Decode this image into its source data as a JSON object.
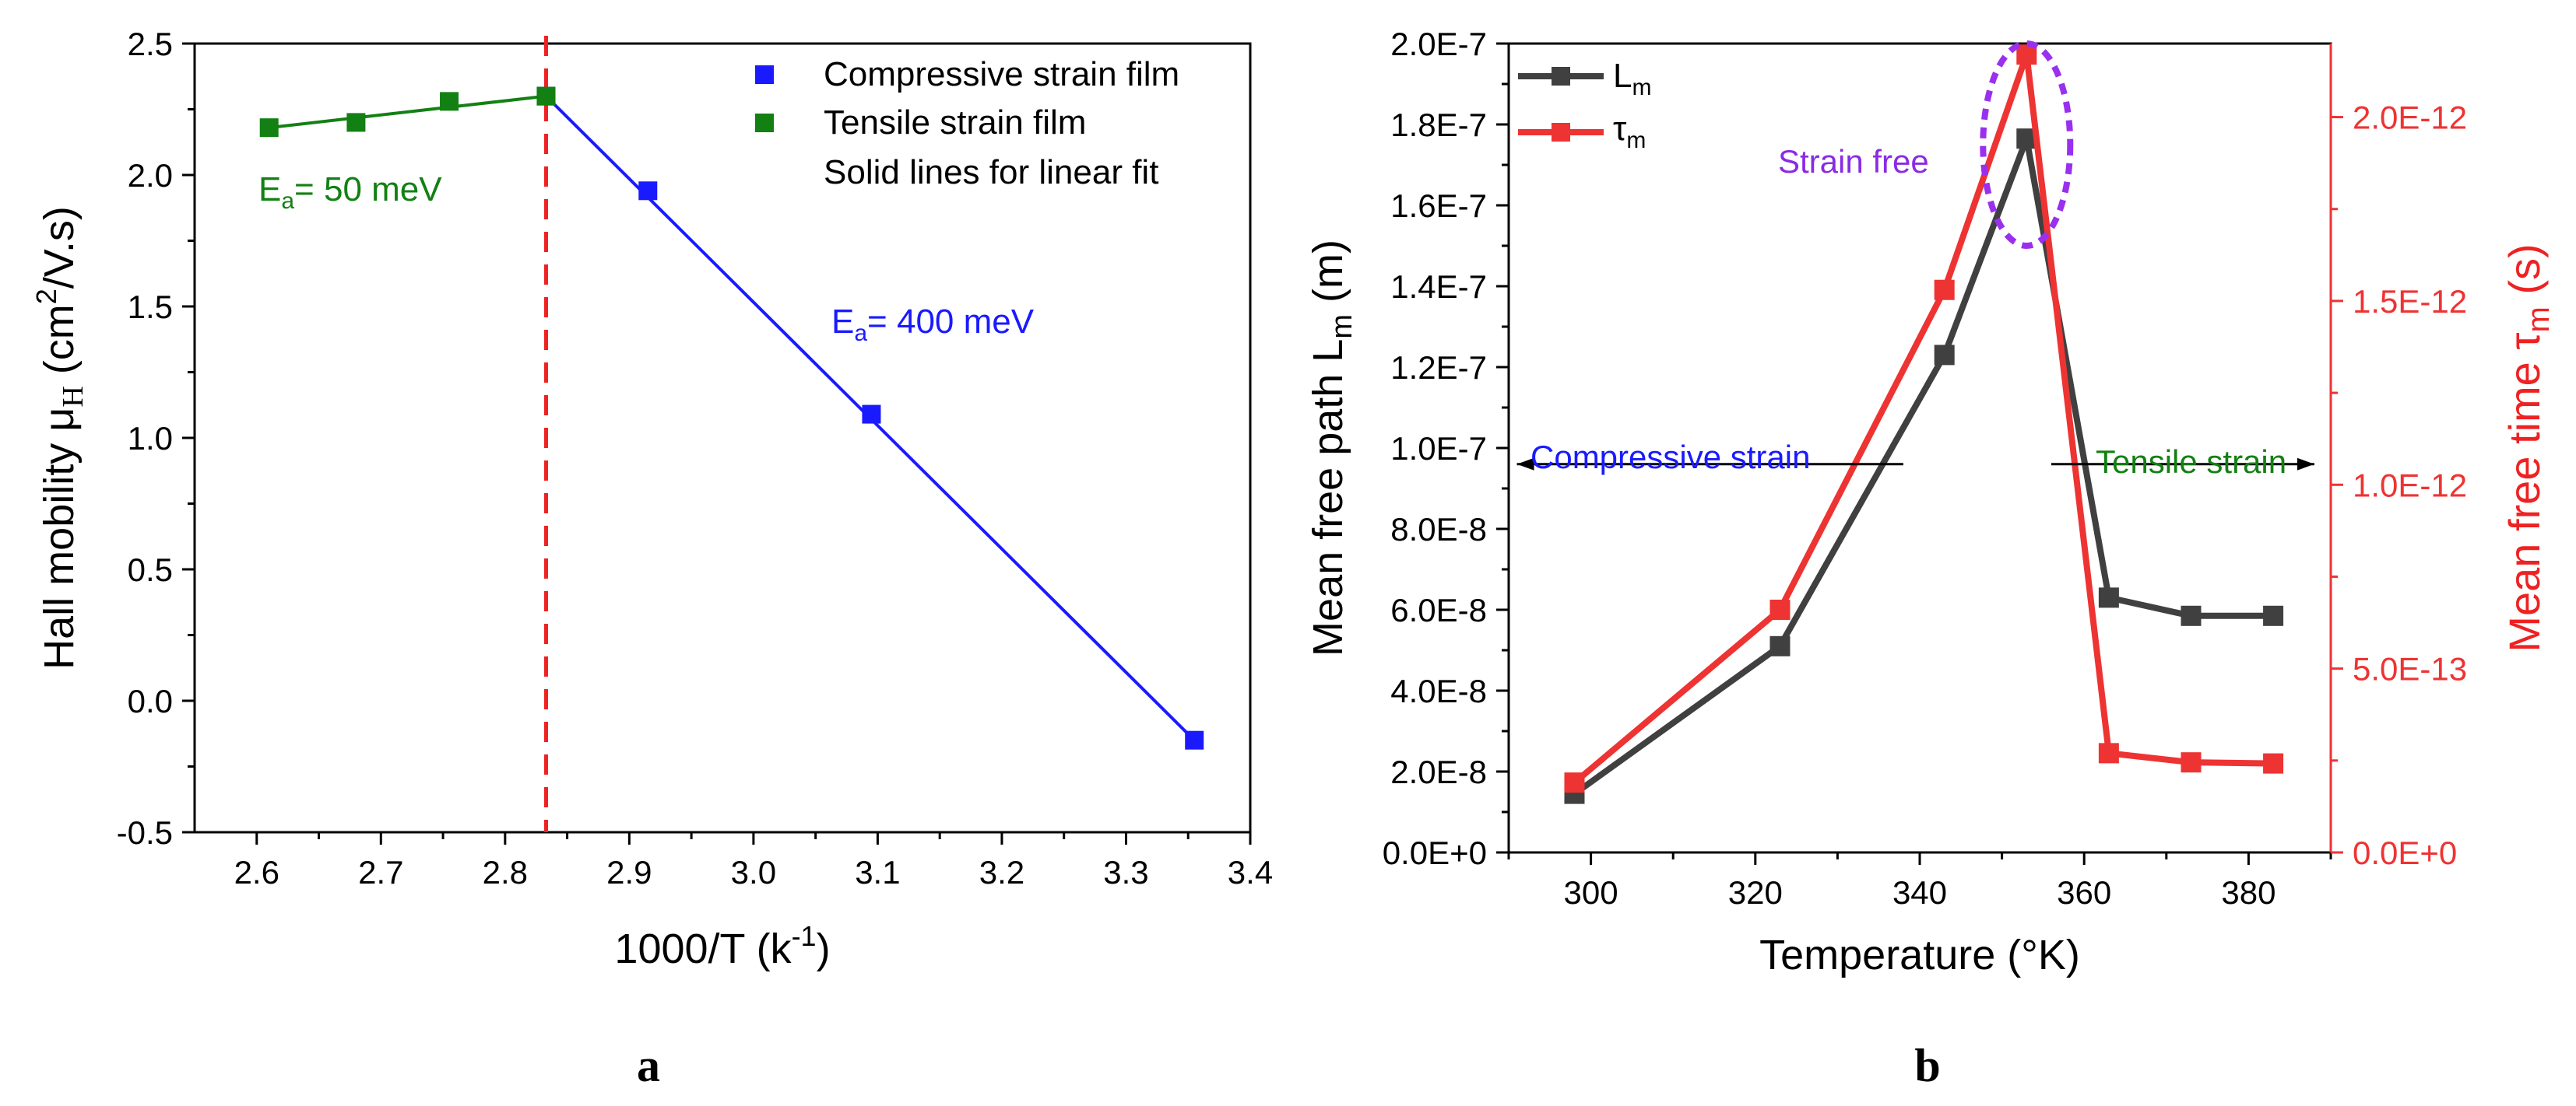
{
  "chart_data": [
    {
      "panel": "a",
      "type": "scatter",
      "xlabel": "1000/T (k",
      "xlabel_sup": "-1",
      "xlabel_end": ")",
      "ylabel_pre": "Hall mobility μ",
      "ylabel_sub": "H",
      "ylabel_mid": " (cm",
      "ylabel_sup": "2",
      "ylabel_end": "/V.s)",
      "xlim": [
        2.55,
        3.4
      ],
      "ylim": [
        -0.5,
        2.5
      ],
      "x_ticks": [
        2.6,
        2.7,
        2.8,
        2.9,
        3.0,
        3.1,
        3.2,
        3.3,
        3.4
      ],
      "x_tick_labels": [
        "2.6",
        "2.7",
        "2.8",
        "2.9",
        "3.0",
        "3.1",
        "3.2",
        "3.3",
        "3.4"
      ],
      "y_ticks": [
        -0.5,
        0.0,
        0.5,
        1.0,
        1.5,
        2.0,
        2.5
      ],
      "y_tick_labels": [
        "-0.5",
        "0.0",
        "0.5",
        "1.0",
        "1.5",
        "2.0",
        "2.5"
      ],
      "series": [
        {
          "name": "Compressive strain film",
          "color": "#1a1aff",
          "x": [
            2.833,
            2.915,
            3.095,
            3.355
          ],
          "y": [
            2.3,
            1.94,
            1.09,
            -0.15
          ],
          "fit": {
            "x": [
              2.833,
              3.355
            ],
            "y": [
              2.3,
              -0.15
            ]
          }
        },
        {
          "name": "Tensile strain film",
          "color": "#138013",
          "x": [
            2.61,
            2.68,
            2.755,
            2.833
          ],
          "y": [
            2.18,
            2.2,
            2.28,
            2.3
          ],
          "fit": {
            "x": [
              2.61,
              2.833
            ],
            "y": [
              2.18,
              2.3
            ]
          }
        }
      ],
      "vline": {
        "x": 2.833,
        "color": "#ee2222"
      },
      "legend": {
        "position": "top-right",
        "entries": [
          "Compressive strain film",
          "Tensile strain film"
        ],
        "note": "Solid lines for linear fit"
      },
      "annotations": [
        {
          "pre": "E",
          "sub": "a",
          "post": "= 50 meV",
          "color": "#138013"
        },
        {
          "pre": "E",
          "sub": "a",
          "post": "= 400 meV",
          "color": "#1a1aff"
        }
      ]
    },
    {
      "panel": "b",
      "type": "line",
      "xlabel": "Temperature (°K)",
      "ylabel_left_pre": "Mean free path L",
      "ylabel_left_sub": "m",
      "ylabel_left_post": " (m)",
      "ylabel_right_pre": "Mean free time τ",
      "ylabel_right_sub": "m",
      "ylabel_right_post": " (s)",
      "xlim": [
        290,
        390
      ],
      "ylim_left": [
        0,
        2e-07
      ],
      "ylim_right": [
        0,
        2.2e-12
      ],
      "x_ticks": [
        300,
        320,
        340,
        360,
        380
      ],
      "x_tick_labels": [
        "300",
        "320",
        "340",
        "360",
        "380"
      ],
      "y_left_ticks": [
        0,
        2e-08,
        4e-08,
        6e-08,
        8e-08,
        1e-07,
        1.2e-07,
        1.4e-07,
        1.6e-07,
        1.8e-07,
        2e-07
      ],
      "y_left_tick_labels": [
        "0.0E+0",
        "2.0E-8",
        "4.0E-8",
        "6.0E-8",
        "8.0E-8",
        "1.0E-7",
        "1.2E-7",
        "1.4E-7",
        "1.6E-7",
        "1.8E-7",
        "2.0E-7"
      ],
      "y_right_ticks": [
        0,
        5e-13,
        1e-12,
        1.5e-12,
        2e-12
      ],
      "y_right_tick_labels": [
        "0.0E+0",
        "5.0E-13",
        "1.0E-12",
        "1.5E-12",
        "2.0E-12"
      ],
      "series": [
        {
          "name": "L",
          "sub": "m",
          "axis": "left",
          "color": "#404040",
          "x": [
            298,
            323,
            343,
            353,
            363,
            373,
            383
          ],
          "y": [
            1.45e-08,
            5.1e-08,
            1.23e-07,
            1.765e-07,
            6.3e-08,
            5.85e-08,
            5.85e-08
          ]
        },
        {
          "name": "τ",
          "sub": "m",
          "axis": "right",
          "color": "#ee3333",
          "x": [
            298,
            323,
            343,
            353,
            363,
            373,
            383
          ],
          "y": [
            1.9e-13,
            6.6e-13,
            1.53e-12,
            2.17e-12,
            2.7e-13,
            2.45e-13,
            2.42e-13
          ]
        }
      ],
      "legend": {
        "position": "top-left"
      },
      "annotations": [
        {
          "text": "Strain free",
          "color": "#8a2be2"
        },
        {
          "text": "Compressive strain",
          "color": "#1a1aff"
        },
        {
          "text": "Tensile strain",
          "color": "#138013"
        }
      ],
      "highlight": {
        "type": "ellipse",
        "center_x": 353,
        "center_y_left": 1.75e-07,
        "color": "#9a30ee"
      },
      "arrows": [
        {
          "from_x": 338,
          "to_x": 291,
          "y_left": 9.6e-08,
          "direction": "left"
        },
        {
          "from_x": 356,
          "to_x": 388,
          "y_left": 9.6e-08,
          "direction": "right"
        }
      ]
    }
  ],
  "panel_labels": [
    "a",
    "b"
  ]
}
